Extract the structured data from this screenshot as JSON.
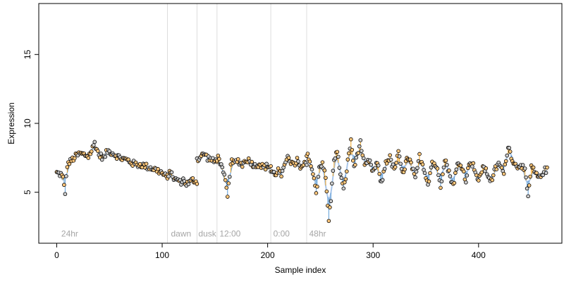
{
  "chart_data": {
    "type": "scatter",
    "title": "",
    "xlabel": "Sample index",
    "ylabel": "Expression",
    "xlim": [
      -17,
      479
    ],
    "ylim": [
      1.3,
      18.7
    ],
    "x_ticks": [
      0,
      100,
      200,
      300,
      400
    ],
    "y_ticks": [
      5,
      10,
      15
    ],
    "grid": false,
    "legend": "none",
    "colors": {
      "points_edge": "#000000",
      "points_fill_orange": "#ffc87c",
      "points_fill_gray": "#cccccc",
      "fit_line": "#6aa3dc",
      "fit_line_light": "#a9c6ea",
      "stem_orange": "#f5a623",
      "stem_blue": "#5b9bd5",
      "separator": "#dddddd",
      "annotation": "#a6a6a6"
    },
    "separators_x": [
      105,
      133,
      152,
      203,
      237
    ],
    "annotations": [
      {
        "x": 3,
        "text": "24hr"
      },
      {
        "x": 107,
        "text": "dawn"
      },
      {
        "x": 133,
        "text": "dusk"
      },
      {
        "x": 153,
        "text": "12:00"
      },
      {
        "x": 204,
        "text": "0:00"
      },
      {
        "x": 238,
        "text": "48hr"
      }
    ],
    "segments": [
      {
        "x_start": 0,
        "x_end": 105,
        "points": [
          [
            0,
            6.4
          ],
          [
            4,
            6.3
          ],
          [
            6,
            6.0
          ],
          [
            8,
            5.0
          ],
          [
            10,
            7.0
          ],
          [
            14,
            7.3
          ],
          [
            18,
            7.6
          ],
          [
            22,
            7.8
          ],
          [
            27,
            7.7
          ],
          [
            30,
            7.6
          ],
          [
            33,
            8.0
          ],
          [
            36,
            8.6
          ],
          [
            40,
            7.7
          ],
          [
            45,
            7.5
          ],
          [
            48,
            8.0
          ],
          [
            52,
            7.9
          ],
          [
            56,
            7.7
          ],
          [
            60,
            7.5
          ],
          [
            64,
            7.4
          ],
          [
            68,
            7.3
          ],
          [
            72,
            7.1
          ],
          [
            76,
            7.0
          ],
          [
            80,
            7.0
          ],
          [
            84,
            6.9
          ],
          [
            88,
            6.8
          ],
          [
            92,
            6.7
          ],
          [
            95,
            6.6
          ],
          [
            98,
            6.5
          ],
          [
            101,
            6.3
          ],
          [
            104,
            6.1
          ]
        ]
      },
      {
        "x_start": 105,
        "x_end": 133,
        "points": [
          [
            106,
            6.2
          ],
          [
            109,
            6.6
          ],
          [
            111,
            5.8
          ],
          [
            114,
            6.0
          ],
          [
            117,
            5.7
          ],
          [
            120,
            5.9
          ],
          [
            123,
            5.6
          ],
          [
            126,
            5.7
          ],
          [
            129,
            5.9
          ],
          [
            132,
            5.8
          ]
        ]
      },
      {
        "x_start": 133,
        "x_end": 152,
        "points": [
          [
            134,
            7.4
          ],
          [
            137,
            7.6
          ],
          [
            140,
            7.8
          ],
          [
            143,
            7.5
          ],
          [
            146,
            7.4
          ],
          [
            149,
            7.2
          ],
          [
            151,
            7.3
          ]
        ]
      },
      {
        "x_start": 152,
        "x_end": 203,
        "points": [
          [
            154,
            7.5
          ],
          [
            157,
            6.6
          ],
          [
            160,
            5.8
          ],
          [
            162,
            4.6
          ],
          [
            165,
            7.2
          ],
          [
            168,
            7.1
          ],
          [
            172,
            7.3
          ],
          [
            176,
            7.0
          ],
          [
            180,
            7.4
          ],
          [
            184,
            7.2
          ],
          [
            188,
            6.9
          ],
          [
            192,
            7.1
          ],
          [
            196,
            6.8
          ],
          [
            200,
            6.9
          ]
        ]
      },
      {
        "x_start": 203,
        "x_end": 237,
        "points": [
          [
            204,
            6.5
          ],
          [
            207,
            6.3
          ],
          [
            210,
            6.6
          ],
          [
            213,
            6.2
          ],
          [
            216,
            6.8
          ],
          [
            219,
            7.8
          ],
          [
            222,
            7.2
          ],
          [
            225,
            6.9
          ],
          [
            228,
            7.4
          ],
          [
            231,
            6.6
          ],
          [
            234,
            7.0
          ]
        ]
      },
      {
        "x_start": 237,
        "x_end": 465,
        "points": [
          [
            239,
            7.6
          ],
          [
            243,
            6.3
          ],
          [
            246,
            5.0
          ],
          [
            249,
            6.8
          ],
          [
            252,
            7.2
          ],
          [
            255,
            6.0
          ],
          [
            258,
            3.0
          ],
          [
            260,
            4.5
          ],
          [
            263,
            7.5
          ],
          [
            266,
            7.9
          ],
          [
            269,
            6.4
          ],
          [
            272,
            5.1
          ],
          [
            274,
            6.1
          ],
          [
            276,
            7.2
          ],
          [
            279,
            8.8
          ],
          [
            282,
            6.7
          ],
          [
            285,
            7.8
          ],
          [
            288,
            8.6
          ],
          [
            292,
            6.8
          ],
          [
            296,
            7.3
          ],
          [
            300,
            6.5
          ],
          [
            304,
            7.1
          ],
          [
            308,
            5.6
          ],
          [
            312,
            7.2
          ],
          [
            316,
            7.5
          ],
          [
            320,
            6.6
          ],
          [
            324,
            7.8
          ],
          [
            328,
            6.3
          ],
          [
            332,
            7.4
          ],
          [
            336,
            7.1
          ],
          [
            340,
            5.9
          ],
          [
            344,
            7.6
          ],
          [
            348,
            6.8
          ],
          [
            352,
            5.6
          ],
          [
            356,
            7.2
          ],
          [
            360,
            6.9
          ],
          [
            364,
            5.5
          ],
          [
            368,
            7.5
          ],
          [
            372,
            6.4
          ],
          [
            376,
            5.5
          ],
          [
            380,
            7.0
          ],
          [
            384,
            6.9
          ],
          [
            388,
            5.9
          ],
          [
            392,
            7.3
          ],
          [
            396,
            6.8
          ],
          [
            400,
            5.7
          ],
          [
            404,
            6.9
          ],
          [
            408,
            6.4
          ],
          [
            412,
            5.8
          ],
          [
            416,
            6.7
          ],
          [
            420,
            7.1
          ],
          [
            424,
            6.3
          ],
          [
            428,
            8.4
          ],
          [
            432,
            7.4
          ],
          [
            436,
            6.8
          ],
          [
            440,
            7.1
          ],
          [
            444,
            6.5
          ],
          [
            447,
            4.6
          ],
          [
            450,
            6.9
          ],
          [
            454,
            6.3
          ],
          [
            458,
            6.0
          ],
          [
            462,
            6.6
          ]
        ]
      }
    ]
  }
}
